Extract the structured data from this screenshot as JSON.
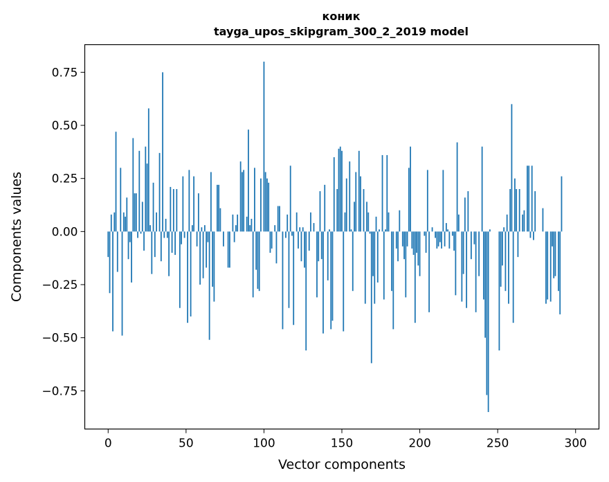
{
  "chart_data": {
    "type": "bar",
    "title_line1": "коник",
    "title_line2": "tayga_upos_skipgram_300_2_2019 model",
    "xlabel": "Vector components",
    "ylabel": "Components values",
    "xlim": [
      -15,
      315
    ],
    "ylim": [
      -0.93,
      0.88
    ],
    "xticks": [
      0,
      50,
      100,
      150,
      200,
      250,
      300
    ],
    "yticks": [
      -0.75,
      -0.5,
      -0.25,
      0.0,
      0.25,
      0.5,
      0.75
    ],
    "ytick_labels": [
      "−0.75",
      "−0.50",
      "−0.25",
      "0.00",
      "0.25",
      "0.50",
      "0.75"
    ],
    "bar_color": "#1f77b4",
    "values": [
      -0.12,
      -0.29,
      0.08,
      -0.47,
      0.09,
      0.47,
      -0.19,
      0.0,
      0.3,
      -0.49,
      0.09,
      0.07,
      0.16,
      -0.13,
      -0.05,
      -0.24,
      0.44,
      0.18,
      0.18,
      -0.03,
      0.38,
      -0.01,
      0.14,
      -0.09,
      0.4,
      0.32,
      0.58,
      0.03,
      -0.2,
      0.23,
      -0.12,
      0.09,
      0.0,
      0.37,
      -0.14,
      0.75,
      -0.03,
      0.06,
      -0.03,
      -0.21,
      0.21,
      -0.1,
      0.2,
      -0.11,
      0.2,
      0.0,
      -0.36,
      -0.06,
      0.26,
      -0.03,
      0.0,
      -0.43,
      0.29,
      -0.4,
      0.03,
      0.26,
      0.0,
      -0.07,
      0.18,
      -0.25,
      0.02,
      -0.22,
      0.03,
      -0.17,
      -0.05,
      -0.51,
      0.28,
      -0.26,
      -0.33,
      0.0,
      0.22,
      0.22,
      0.11,
      0.0,
      -0.07,
      0.0,
      0.0,
      -0.17,
      -0.17,
      0.0,
      0.08,
      -0.05,
      0.03,
      0.08,
      0.0,
      0.33,
      0.28,
      0.29,
      0.0,
      0.07,
      0.48,
      0.03,
      0.06,
      -0.31,
      0.3,
      -0.18,
      -0.27,
      -0.28,
      0.25,
      0.0,
      0.8,
      0.28,
      0.25,
      0.23,
      -0.1,
      -0.08,
      0.0,
      0.03,
      -0.15,
      0.12,
      0.12,
      0.0,
      -0.46,
      0.0,
      -0.03,
      0.08,
      -0.36,
      0.31,
      -0.02,
      -0.44,
      0.0,
      0.09,
      -0.08,
      0.02,
      -0.14,
      0.02,
      -0.17,
      -0.56,
      0.0,
      -0.09,
      0.09,
      0.0,
      0.04,
      0.0,
      -0.31,
      -0.14,
      0.19,
      -0.13,
      -0.48,
      0.22,
      0.0,
      -0.23,
      0.01,
      -0.46,
      -0.42,
      0.35,
      0.0,
      0.2,
      0.39,
      0.4,
      0.38,
      -0.47,
      0.09,
      0.25,
      0.0,
      0.33,
      0.01,
      -0.28,
      0.14,
      0.28,
      0.0,
      0.38,
      0.26,
      0.0,
      0.2,
      -0.34,
      0.14,
      0.09,
      -0.01,
      -0.62,
      -0.21,
      -0.34,
      0.07,
      -0.24,
      0.01,
      0.0,
      0.36,
      -0.32,
      0.01,
      0.36,
      0.09,
      0.0,
      -0.28,
      -0.46,
      0.0,
      -0.08,
      -0.14,
      0.1,
      0.0,
      -0.07,
      -0.13,
      -0.31,
      -0.07,
      0.3,
      0.4,
      -0.08,
      -0.11,
      -0.43,
      -0.1,
      -0.16,
      -0.21,
      0.0,
      0.0,
      -0.02,
      -0.1,
      0.29,
      -0.38,
      0.0,
      0.02,
      0.0,
      -0.03,
      -0.08,
      -0.07,
      -0.05,
      -0.08,
      0.29,
      -0.07,
      0.04,
      0.01,
      -0.08,
      0.0,
      -0.02,
      -0.09,
      -0.3,
      0.42,
      0.08,
      0.0,
      -0.33,
      -0.2,
      0.16,
      -0.36,
      0.19,
      0.0,
      -0.13,
      0.0,
      -0.06,
      -0.38,
      0.0,
      -0.21,
      0.0,
      0.4,
      -0.32,
      -0.5,
      -0.77,
      -0.85,
      0.01,
      0.0,
      0.0,
      0.0,
      0.0,
      0.0,
      -0.56,
      -0.26,
      -0.16,
      0.02,
      -0.28,
      0.08,
      -0.34,
      0.2,
      0.6,
      -0.43,
      0.25,
      0.2,
      -0.12,
      0.2,
      0.0,
      0.08,
      0.1,
      0.0,
      0.31,
      0.31,
      -0.03,
      0.31,
      -0.04,
      0.19,
      0.0,
      0.0,
      0.0,
      0.0,
      0.11,
      0.0,
      -0.34,
      -0.32,
      0.0,
      -0.33,
      -0.07,
      -0.22,
      -0.21,
      0.0,
      -0.28,
      -0.39,
      0.26,
      0.0,
      0.0,
      0.0,
      0.0
    ]
  }
}
